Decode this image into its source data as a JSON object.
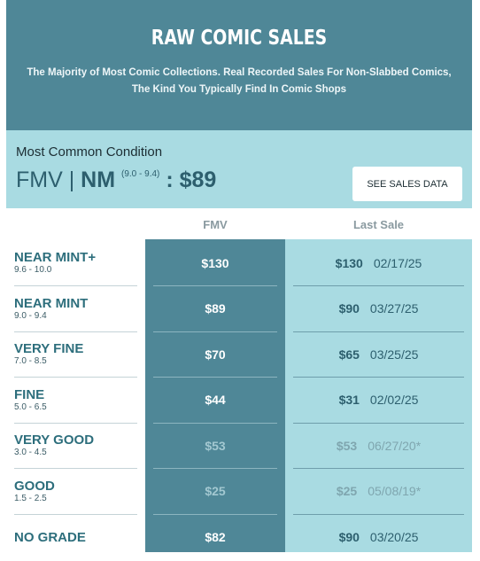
{
  "header": {
    "title": "RAW COMIC SALES",
    "subtitle": "The Majority of Most Comic Collections. Real Recorded Sales For Non-Slabbed Comics, The Kind You Typically Find In Comic Shops"
  },
  "summary": {
    "label": "Most Common Condition",
    "fmv_prefix": "FMV | ",
    "grade": "NM",
    "grade_range": "(9.0 - 9.4)",
    "price": " : $89",
    "button_label": "SEE SALES DATA"
  },
  "columns": {
    "fmv": "FMV",
    "last_sale": "Last Sale"
  },
  "rows": [
    {
      "name": "NEAR MINT+",
      "range": "9.6 - 10.0",
      "fmv": "$130",
      "last_amount": "$130",
      "last_date": "02/17/25",
      "dim": false
    },
    {
      "name": "NEAR MINT",
      "range": "9.0 - 9.4",
      "fmv": "$89",
      "last_amount": "$90",
      "last_date": "03/27/25",
      "dim": false
    },
    {
      "name": "VERY FINE",
      "range": "7.0 - 8.5",
      "fmv": "$70",
      "last_amount": "$65",
      "last_date": "03/25/25",
      "dim": false
    },
    {
      "name": "FINE",
      "range": "5.0 - 6.5",
      "fmv": "$44",
      "last_amount": "$31",
      "last_date": "02/02/25",
      "dim": false
    },
    {
      "name": "VERY GOOD",
      "range": "3.0 - 4.5",
      "fmv": "$53",
      "last_amount": "$53",
      "last_date": "06/27/20*",
      "dim": true
    },
    {
      "name": "GOOD",
      "range": "1.5 - 2.5",
      "fmv": "$25",
      "last_amount": "$25",
      "last_date": "05/08/19*",
      "dim": true
    },
    {
      "name": "NO GRADE",
      "range": "",
      "fmv": "$82",
      "last_amount": "$90",
      "last_date": "03/20/25",
      "dim": false
    }
  ],
  "colors": {
    "header_bg": "#4f8797",
    "summary_bg": "#a9dbe2",
    "fmv_col_bg": "#4f8797",
    "last_col_bg": "#a9dbe2"
  }
}
